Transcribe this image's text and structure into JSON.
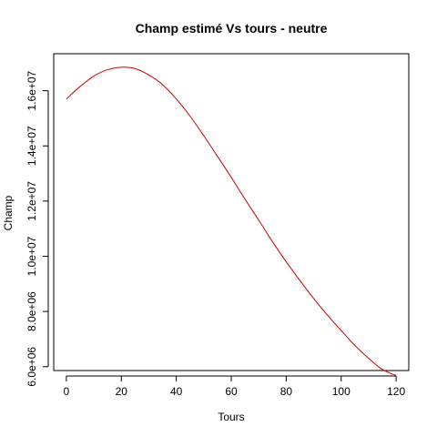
{
  "chart_data": {
    "type": "line",
    "title": "Champ estimé Vs tours - neutre",
    "xlabel": "Tours",
    "ylabel": "Champ",
    "xlim": [
      -4.6,
      124.6
    ],
    "ylim": [
      5860000,
      17340000
    ],
    "x_ticks": [
      {
        "value": 0,
        "label": "0"
      },
      {
        "value": 20,
        "label": "20"
      },
      {
        "value": 40,
        "label": "40"
      },
      {
        "value": 60,
        "label": "60"
      },
      {
        "value": 80,
        "label": "80"
      },
      {
        "value": 100,
        "label": "100"
      },
      {
        "value": 120,
        "label": "120"
      }
    ],
    "y_ticks": [
      {
        "value": 6000000,
        "label": "6.0e+06"
      },
      {
        "value": 8000000,
        "label": "8.0e+06"
      },
      {
        "value": 10000000,
        "label": "1.0e+07"
      },
      {
        "value": 12000000,
        "label": "1.2e+07"
      },
      {
        "value": 14000000,
        "label": "1.4e+07"
      },
      {
        "value": 16000000,
        "label": "1.6e+07"
      }
    ],
    "grid": false,
    "series": [
      {
        "color": "#cc0000",
        "x": [
          0,
          5,
          10,
          15,
          20,
          25,
          30,
          35,
          40,
          45,
          50,
          55,
          60,
          65,
          70,
          75,
          80,
          85,
          90,
          95,
          100,
          105,
          110,
          115,
          120
        ],
        "y": [
          15700000,
          16150000,
          16530000,
          16760000,
          16850000,
          16800000,
          16570000,
          16220000,
          15700000,
          15080000,
          14370000,
          13620000,
          12860000,
          12070000,
          11310000,
          10530000,
          9800000,
          9120000,
          8470000,
          7870000,
          7310000,
          6770000,
          6300000,
          5900000,
          5680000
        ]
      }
    ]
  }
}
